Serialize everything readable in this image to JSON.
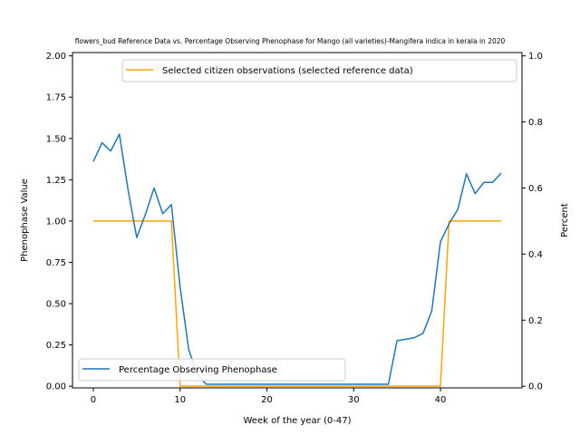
{
  "chart_data": {
    "type": "line",
    "title": "flowers_bud Reference Data vs. Percentage Observing Phenophase for Mango (all varieties)-Mangifera indica in kerala in 2020",
    "xlabel": "Week of the year (0-47)",
    "ylabel_left": "Phenophase Value",
    "ylabel_right": "Percent",
    "xlim": [
      -2.4,
      49.4
    ],
    "ylim_left": [
      -0.01,
      2.02
    ],
    "ylim_right": [
      -0.005,
      1.01
    ],
    "xticks": [
      "0",
      "10",
      "20",
      "30",
      "40"
    ],
    "yticks_left": [
      "0.00",
      "0.25",
      "0.50",
      "0.75",
      "1.00",
      "1.25",
      "1.50",
      "1.75",
      "2.00"
    ],
    "yticks_right": [
      "0.0",
      "0.2",
      "0.4",
      "0.6",
      "0.8",
      "1.0"
    ],
    "grid": false,
    "series": [
      {
        "name": "Selected citizen observations (selected reference data)",
        "axis": "left",
        "color": "#ffa500",
        "legend_position": "upper right",
        "x": [
          0,
          1,
          2,
          3,
          4,
          5,
          6,
          7,
          8,
          9,
          10,
          11,
          12,
          13,
          14,
          15,
          16,
          17,
          18,
          19,
          20,
          21,
          22,
          23,
          24,
          25,
          26,
          27,
          28,
          29,
          30,
          31,
          32,
          33,
          34,
          35,
          36,
          37,
          38,
          39,
          40,
          41,
          42,
          43,
          44,
          45,
          46,
          47
        ],
        "values": [
          1,
          1,
          1,
          1,
          1,
          1,
          1,
          1,
          1,
          1,
          0,
          0,
          0,
          0,
          0,
          0,
          0,
          0,
          0,
          0,
          0,
          0,
          0,
          0,
          0,
          0,
          0,
          0,
          0,
          0,
          0,
          0,
          0,
          0,
          0,
          0,
          0,
          0,
          0,
          0,
          0,
          1,
          1,
          1,
          1,
          1,
          1,
          1
        ]
      },
      {
        "name": "Percentage Observing Phenophase",
        "axis": "right",
        "color": "#1f77b4",
        "legend_position": "lower left",
        "x": [
          0,
          1,
          2,
          3,
          4,
          5,
          6,
          7,
          8,
          9,
          10,
          11,
          12,
          13,
          14,
          15,
          16,
          17,
          18,
          19,
          20,
          21,
          22,
          23,
          24,
          25,
          26,
          27,
          28,
          29,
          30,
          31,
          32,
          33,
          34,
          35,
          36,
          37,
          38,
          39,
          40,
          41,
          42,
          43,
          44,
          45,
          46,
          47
        ],
        "values": [
          0.68,
          0.737,
          0.712,
          0.763,
          0.595,
          0.45,
          0.52,
          0.6,
          0.522,
          0.55,
          0.3,
          0.11,
          0.035,
          0.006,
          0.006,
          0.006,
          0.006,
          0.006,
          0.006,
          0.006,
          0.006,
          0.006,
          0.006,
          0.006,
          0.006,
          0.006,
          0.006,
          0.006,
          0.006,
          0.006,
          0.006,
          0.006,
          0.006,
          0.006,
          0.006,
          0.138,
          0.142,
          0.147,
          0.16,
          0.228,
          0.437,
          0.492,
          0.535,
          0.643,
          0.583,
          0.617,
          0.617,
          0.645
        ]
      }
    ]
  }
}
